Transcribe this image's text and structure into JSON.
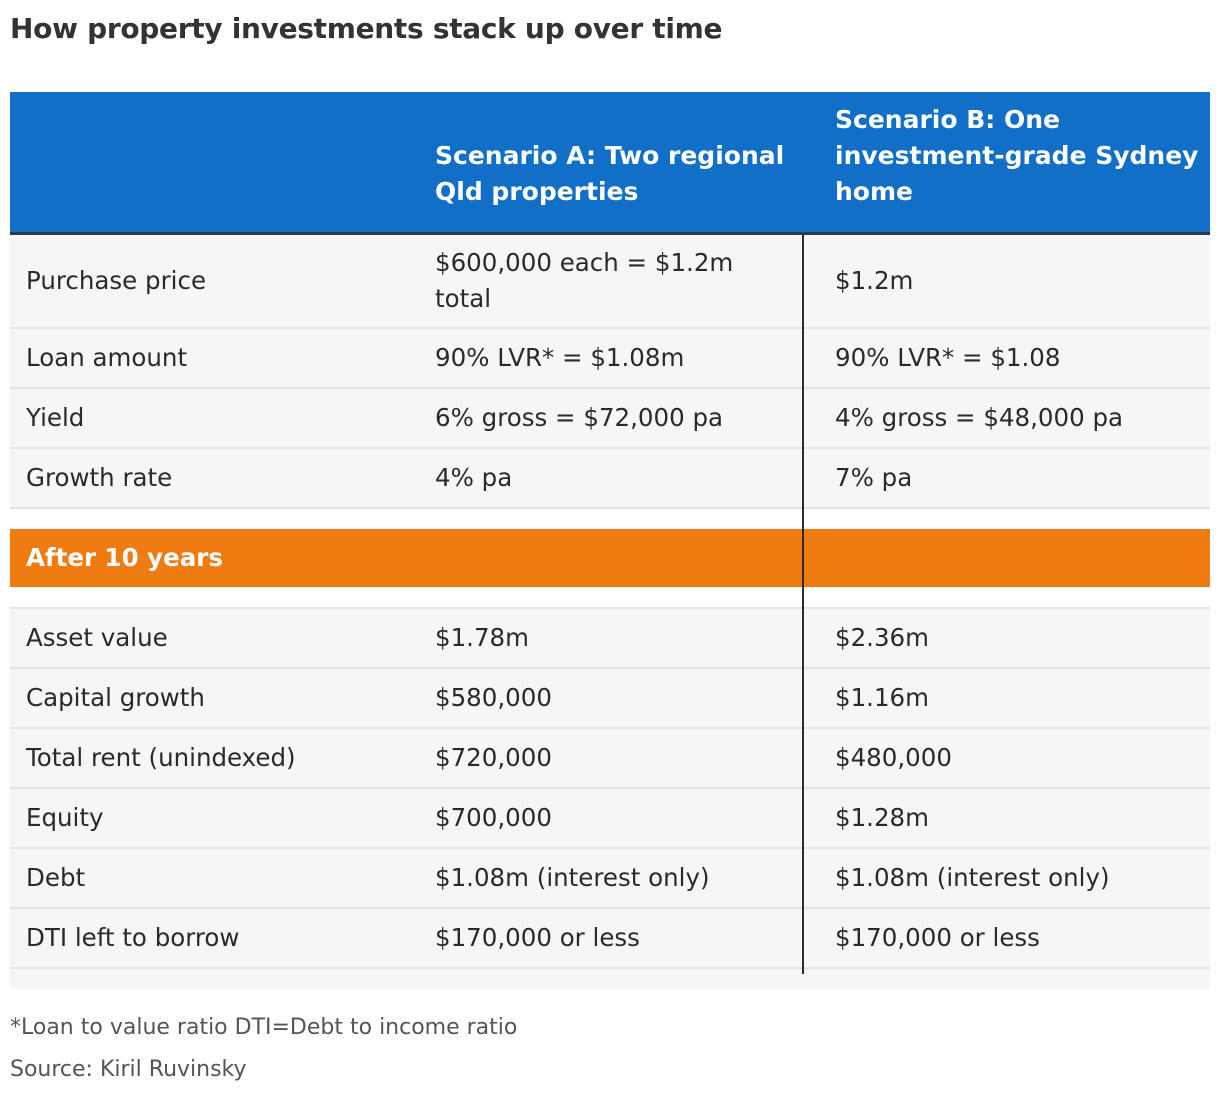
{
  "title": "How property investments stack up over time",
  "header": {
    "col1": "",
    "scenario_a": "Scenario A: Two regional Qld properties",
    "scenario_b": "Scenario B: One investment-grade Sydney home"
  },
  "rows": [
    {
      "label": "Purchase price",
      "a": "$600,000 each = $1.2m total",
      "b": "$1.2m"
    },
    {
      "label": "Loan amount",
      "a": "90% LVR* = $1.08m",
      "b": "90% LVR* = $1.08"
    },
    {
      "label": "Yield",
      "a": "6% gross = $72,000 pa",
      "b": "4% gross = $48,000 pa"
    },
    {
      "label": "Growth rate",
      "a": "4% pa",
      "b": "7% pa"
    }
  ],
  "section": {
    "label": "After 10 years"
  },
  "after_rows": [
    {
      "label": "Asset value",
      "a": "$1.78m",
      "b": "$2.36m"
    },
    {
      "label": "Capital growth",
      "a": "$580,000",
      "b": "$1.16m"
    },
    {
      "label": "Total rent (unindexed)",
      "a": "$720,000",
      "b": "$480,000"
    },
    {
      "label": "Equity",
      "a": "$700,000",
      "b": "$1.28m"
    },
    {
      "label": "Debt",
      "a": "$1.08m (interest only)",
      "b": "$1.08m (interest only)"
    },
    {
      "label": "DTI left to borrow",
      "a": "$170,000 or less",
      "b": "$170,000 or less"
    }
  ],
  "footnote": "*Loan to value ratio DTI=Debt to income ratio",
  "source": "Source: Kiril Ruvinsky",
  "colors": {
    "header": "#116fc8",
    "section": "#f07b11",
    "row": "#f6f6f6"
  }
}
